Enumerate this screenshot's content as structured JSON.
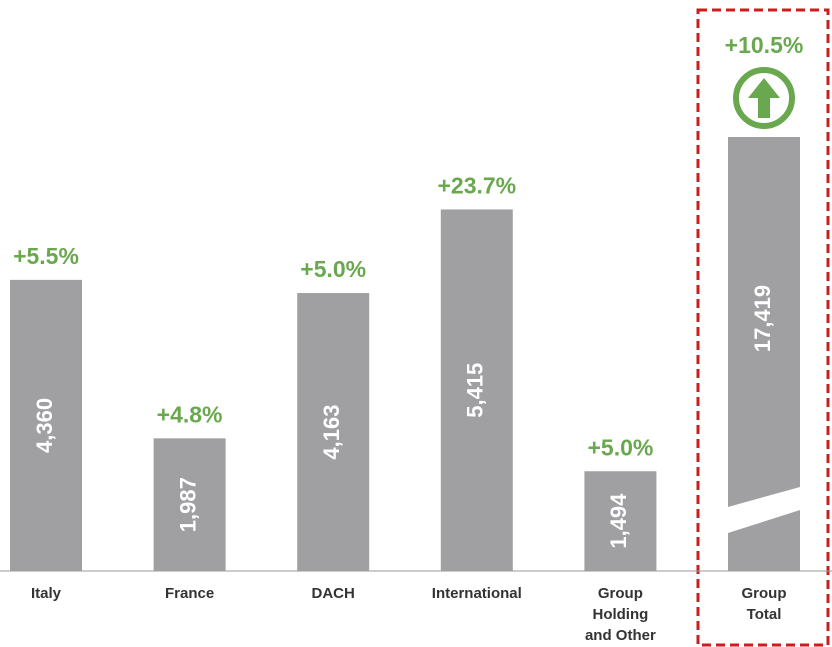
{
  "chart_data": {
    "type": "bar",
    "categories": [
      "Italy",
      "France",
      "DACH",
      "International",
      "Group Holding and Other",
      "Group Total"
    ],
    "values": [
      4360,
      1987,
      4163,
      5415,
      1494,
      17419
    ],
    "value_labels": [
      "4,360",
      "1,987",
      "4,163",
      "5,415",
      "1,494",
      "17,419"
    ],
    "annotations": [
      "+5.5%",
      "+4.8%",
      "+5.0%",
      "+23.7%",
      "+5.0%",
      "+10.5%"
    ],
    "color": "#a0a0a3",
    "annotation_color": "#6aa84f",
    "ylim": [
      0,
      6500
    ]
  }
}
